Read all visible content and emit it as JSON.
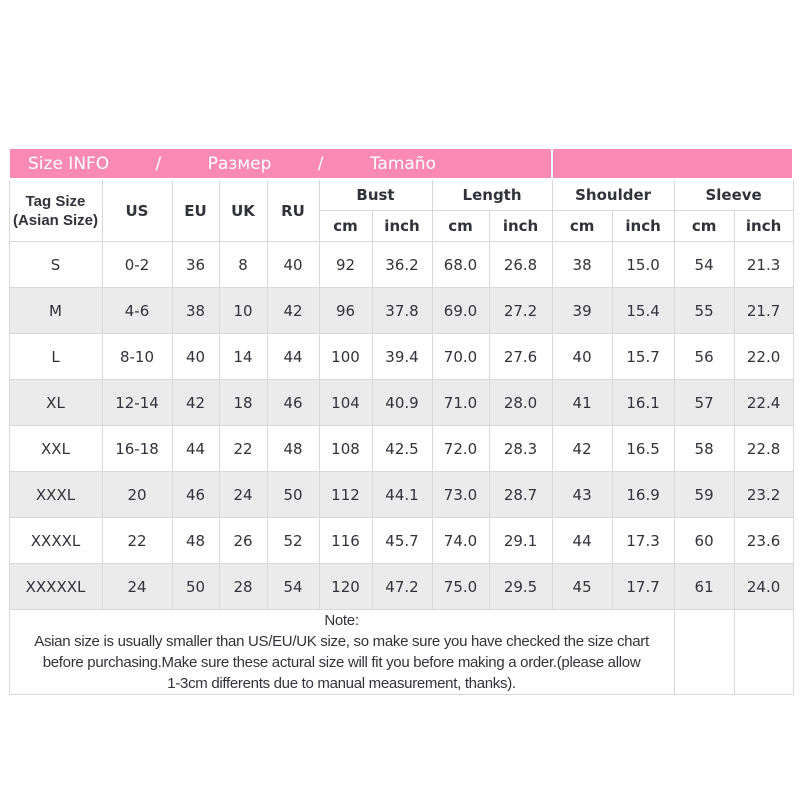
{
  "size_chart": {
    "colors": {
      "title_bg": "#fa8ab3",
      "title_text": "#ffffff",
      "header_bg": "#fbe6de",
      "row_alt_bg": "#ebebeb",
      "grid_line": "#d8d8d8",
      "body_text": "#32323a"
    },
    "title": {
      "parts": [
        "Size INFO",
        "/",
        "Размер",
        "/",
        "Tamaño"
      ]
    },
    "headers": {
      "tag_size_lines": [
        "Tag Size",
        "(Asian Size)"
      ],
      "region_columns": [
        "US",
        "EU",
        "UK",
        "RU"
      ],
      "measure_groups": [
        {
          "label": "Bust"
        },
        {
          "label": "Length"
        },
        {
          "label": "Shoulder"
        },
        {
          "label": "Sleeve"
        }
      ],
      "unit_labels": [
        "cm",
        "inch"
      ]
    },
    "rows": [
      {
        "cells": [
          "S",
          "0-2",
          "36",
          "8",
          "40",
          "92",
          "36.2",
          "68.0",
          "26.8",
          "38",
          "15.0",
          "54",
          "21.3"
        ]
      },
      {
        "cells": [
          "M",
          "4-6",
          "38",
          "10",
          "42",
          "96",
          "37.8",
          "69.0",
          "27.2",
          "39",
          "15.4",
          "55",
          "21.7"
        ]
      },
      {
        "cells": [
          "L",
          "8-10",
          "40",
          "14",
          "44",
          "100",
          "39.4",
          "70.0",
          "27.6",
          "40",
          "15.7",
          "56",
          "22.0"
        ]
      },
      {
        "cells": [
          "XL",
          "12-14",
          "42",
          "18",
          "46",
          "104",
          "40.9",
          "71.0",
          "28.0",
          "41",
          "16.1",
          "57",
          "22.4"
        ]
      },
      {
        "cells": [
          "XXL",
          "16-18",
          "44",
          "22",
          "48",
          "108",
          "42.5",
          "72.0",
          "28.3",
          "42",
          "16.5",
          "58",
          "22.8"
        ]
      },
      {
        "cells": [
          "XXXL",
          "20",
          "46",
          "24",
          "50",
          "112",
          "44.1",
          "73.0",
          "28.7",
          "43",
          "16.9",
          "59",
          "23.2"
        ]
      },
      {
        "cells": [
          "XXXXL",
          "22",
          "48",
          "26",
          "52",
          "116",
          "45.7",
          "74.0",
          "29.1",
          "44",
          "17.3",
          "60",
          "23.6"
        ]
      },
      {
        "cells": [
          "XXXXXL",
          "24",
          "50",
          "28",
          "54",
          "120",
          "47.2",
          "75.0",
          "29.5",
          "45",
          "17.7",
          "61",
          "24.0"
        ]
      }
    ],
    "note": {
      "lines": [
        "Note:",
        "Asian size is usually smaller than US/EU/UK size, so make sure you have checked the size chart",
        "before purchasing.Make sure these actural size will fit you before making a order.(please allow",
        "1-3cm differents due to manual measurement, thanks)."
      ]
    }
  }
}
